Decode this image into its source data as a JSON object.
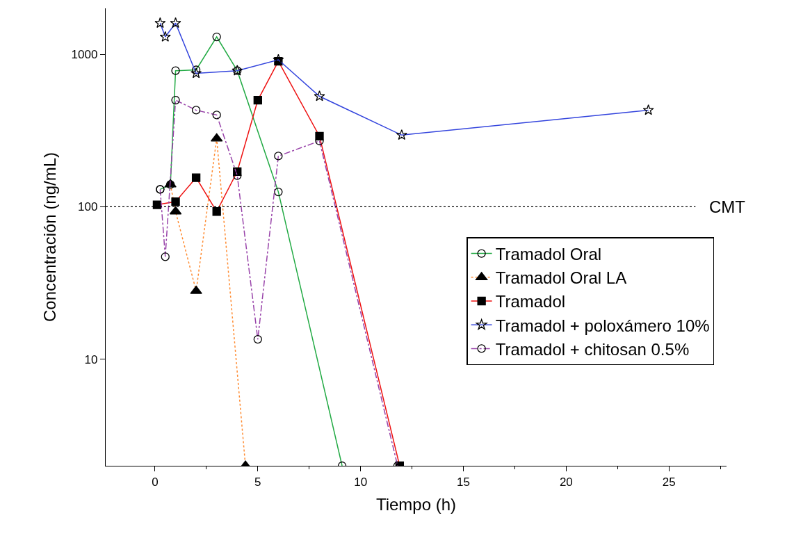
{
  "chart_data": {
    "type": "line",
    "xlabel": "Tiempo (h)",
    "ylabel": "Concentración (ng/mL)",
    "log": "y",
    "xlim": [
      -2.4,
      27.8
    ],
    "xticks": [
      0,
      5,
      10,
      15,
      20,
      25
    ],
    "ylim": [
      2,
      2000
    ],
    "yticks": [
      10,
      100,
      1000
    ],
    "legend": "right",
    "series": [
      {
        "name": "Tramadol Oral",
        "color": "#22aa44",
        "marker": "circle",
        "line_style": "solid",
        "x": [
          0.25,
          0.75,
          1,
          2,
          3,
          4,
          6,
          9.1
        ],
        "values": [
          130,
          140,
          780,
          790,
          1300,
          780,
          125,
          2
        ]
      },
      {
        "name": "Tramadol Oral LA",
        "color": "#ff8c33",
        "marker": "triangle",
        "line_style": "dotted",
        "x": [
          0.75,
          1,
          2,
          3,
          4.4
        ],
        "values": [
          140,
          93,
          28,
          280,
          2
        ]
      },
      {
        "name": "Tramadol",
        "color": "#ee1111",
        "marker": "square",
        "line_style": "solid",
        "x": [
          0.1,
          1,
          2,
          3,
          4,
          5,
          6,
          8,
          11.9
        ],
        "values": [
          103,
          108,
          155,
          93,
          170,
          500,
          900,
          290,
          2
        ]
      },
      {
        "name": "Tramadol + poloxámero 10%",
        "color": "#3344dd",
        "marker": "star",
        "line_style": "solid",
        "x": [
          0.25,
          0.5,
          1,
          2,
          4,
          6,
          8,
          12,
          24
        ],
        "values": [
          1600,
          1300,
          1600,
          750,
          780,
          920,
          530,
          295,
          430
        ]
      },
      {
        "name": "Tramadol + chitosan 0.5%",
        "color": "#9944aa",
        "marker": "circle",
        "line_style": "dashed",
        "x": [
          0.25,
          0.5,
          1,
          2,
          3,
          4,
          5,
          6,
          8,
          11.8
        ],
        "values": [
          130,
          47,
          500,
          430,
          400,
          160,
          13.5,
          215,
          270,
          2
        ]
      }
    ],
    "ref_lines": [
      {
        "axis": "y",
        "value": 100,
        "label": "CMT",
        "line_style": "dotted",
        "color": "#000000"
      }
    ]
  }
}
